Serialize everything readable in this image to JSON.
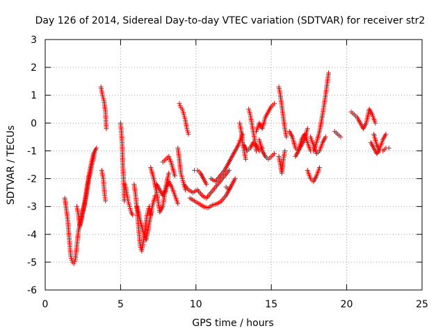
{
  "chart_data": {
    "type": "scatter",
    "title": "Day 126 of 2014, Sidereal Day-to-day VTEC variation (SDTVAR) for receiver str2",
    "xlabel": "GPS time / hours",
    "ylabel": "SDTVAR / TECUs",
    "xlim": [
      0,
      25
    ],
    "ylim": [
      -6,
      3
    ],
    "xticks": [
      0,
      5,
      10,
      15,
      20,
      25
    ],
    "yticks": [
      -6,
      -5,
      -4,
      -3,
      -2,
      -1,
      0,
      1,
      2,
      3
    ],
    "grid": true,
    "marker": "+",
    "color": "#ff0000",
    "series": [
      {
        "name": "SDTVAR",
        "tracks": [
          {
            "x": [
              1.3,
              1.5,
              1.6,
              1.7,
              1.8,
              1.9,
              2.0,
              2.1,
              2.2,
              2.4,
              2.6,
              2.8,
              3.0,
              3.2,
              3.4
            ],
            "y": [
              -2.7,
              -3.5,
              -4.2,
              -4.8,
              -5.0,
              -5.05,
              -4.9,
              -4.4,
              -3.9,
              -3.4,
              -2.9,
              -2.2,
              -1.6,
              -1.1,
              -0.9
            ]
          },
          {
            "x": [
              2.1,
              2.2,
              2.3,
              2.5,
              2.7,
              2.9,
              3.1,
              3.3
            ],
            "y": [
              -3.0,
              -3.3,
              -3.7,
              -3.2,
              -2.7,
              -2.0,
              -1.5,
              -1.0
            ]
          },
          {
            "x": [
              3.7,
              3.8,
              3.9,
              4.0,
              4.05
            ],
            "y": [
              1.3,
              1.0,
              0.8,
              0.4,
              -0.2
            ]
          },
          {
            "x": [
              3.75,
              3.85,
              3.95,
              4.0
            ],
            "y": [
              -1.7,
              -2.0,
              -2.6,
              -2.8
            ]
          },
          {
            "x": [
              5.0,
              5.05,
              5.1,
              5.15,
              5.2,
              5.25
            ],
            "y": [
              0.0,
              -0.3,
              -0.7,
              -1.5,
              -2.0,
              -2.8
            ]
          },
          {
            "x": [
              5.3,
              5.4,
              5.5,
              5.6,
              5.7,
              5.8
            ],
            "y": [
              -2.2,
              -2.5,
              -2.8,
              -3.0,
              -3.2,
              -3.3
            ]
          },
          {
            "x": [
              5.9,
              6.0,
              6.1,
              6.2,
              6.3,
              6.4,
              6.5,
              6.6,
              6.7,
              6.8,
              6.9,
              7.0
            ],
            "y": [
              -2.2,
              -2.6,
              -3.2,
              -3.8,
              -4.4,
              -4.6,
              -4.3,
              -3.9,
              -3.5,
              -3.2,
              -3.0,
              -3.3
            ]
          },
          {
            "x": [
              6.1,
              6.3,
              6.5,
              6.7,
              6.9,
              7.1,
              7.3
            ],
            "y": [
              -3.0,
              -3.5,
              -3.9,
              -4.2,
              -3.6,
              -3.0,
              -2.6
            ]
          },
          {
            "x": [
              7.0,
              7.2,
              7.4,
              7.6,
              7.8,
              8.0,
              8.2
            ],
            "y": [
              -1.6,
              -2.0,
              -2.5,
              -3.2,
              -3.0,
              -2.3,
              -1.8
            ]
          },
          {
            "x": [
              7.4,
              7.6,
              7.8,
              8.0,
              8.2,
              8.4,
              8.6,
              8.8
            ],
            "y": [
              -2.2,
              -2.4,
              -2.6,
              -2.4,
              -2.1,
              -2.3,
              -2.6,
              -2.9
            ]
          },
          {
            "x": [
              7.8,
              8.0,
              8.2,
              8.4,
              8.6
            ],
            "y": [
              -1.4,
              -1.3,
              -1.2,
              -1.5,
              -1.9
            ]
          },
          {
            "x": [
              8.9,
              9.0,
              9.1,
              9.2,
              9.3,
              9.4,
              9.5
            ],
            "y": [
              0.7,
              0.55,
              0.5,
              0.3,
              0.1,
              -0.2,
              -0.4
            ]
          },
          {
            "x": [
              8.8,
              8.9,
              9.0,
              9.1,
              9.2,
              9.3
            ],
            "y": [
              -0.9,
              -1.3,
              -1.8,
              -2.0,
              -2.2,
              -2.4
            ]
          },
          {
            "x": [
              9.2,
              9.5,
              9.8,
              10.1,
              10.4,
              10.7,
              11.0,
              11.3,
              11.6,
              11.9,
              12.2
            ],
            "y": [
              -2.2,
              -2.4,
              -2.5,
              -2.4,
              -2.6,
              -2.7,
              -2.5,
              -2.3,
              -2.1,
              -1.9,
              -1.7
            ]
          },
          {
            "x": [
              9.6,
              9.9,
              10.2,
              10.5,
              10.8,
              11.1,
              11.4,
              11.7,
              12.0,
              12.3
            ],
            "y": [
              -2.7,
              -2.8,
              -2.9,
              -3.0,
              -3.05,
              -2.95,
              -2.9,
              -2.8,
              -2.6,
              -2.3
            ]
          },
          {
            "x": [
              9.9,
              10.1,
              10.3,
              10.5,
              10.7
            ],
            "y": [
              -1.7,
              -1.7,
              -1.8,
              -2.0,
              -2.2
            ]
          },
          {
            "x": [
              11.0,
              11.3,
              11.6,
              11.9,
              12.2,
              12.5,
              12.8,
              13.1
            ],
            "y": [
              -2.0,
              -2.1,
              -1.9,
              -1.7,
              -1.4,
              -1.1,
              -0.8,
              -0.4
            ]
          },
          {
            "x": [
              12.0,
              12.2,
              12.4,
              12.6
            ],
            "y": [
              -2.3,
              -2.4,
              -2.2,
              -2.0
            ]
          },
          {
            "x": [
              12.9,
              13.0,
              13.1,
              13.2,
              13.3
            ],
            "y": [
              0.0,
              -0.3,
              -0.7,
              -1.0,
              -1.3
            ]
          },
          {
            "x": [
              13.2,
              13.4,
              13.6,
              13.8,
              14.0,
              14.2,
              14.4
            ],
            "y": [
              -0.8,
              -1.0,
              -0.9,
              -0.7,
              -0.8,
              -1.0,
              -0.9
            ]
          },
          {
            "x": [
              13.5,
              13.6,
              13.7,
              13.8,
              13.9,
              14.0
            ],
            "y": [
              0.5,
              0.3,
              0.0,
              -0.3,
              -0.6,
              -1.0
            ]
          },
          {
            "x": [
              14.0,
              14.2,
              14.4,
              14.6,
              14.8,
              15.0,
              15.2
            ],
            "y": [
              -0.3,
              0.0,
              -0.2,
              0.2,
              0.4,
              0.6,
              0.7
            ]
          },
          {
            "x": [
              14.2,
              14.4,
              14.6,
              14.8,
              15.0,
              15.2
            ],
            "y": [
              -0.6,
              -1.0,
              -1.2,
              -1.3,
              -1.2,
              -1.1
            ]
          },
          {
            "x": [
              15.5,
              15.6,
              15.7,
              15.8,
              15.9,
              16.0
            ],
            "y": [
              1.3,
              1.0,
              0.6,
              0.2,
              -0.2,
              -0.5
            ]
          },
          {
            "x": [
              15.5,
              15.6,
              15.7,
              15.8,
              15.9
            ],
            "y": [
              -1.2,
              -1.5,
              -1.8,
              -1.3,
              -1.0
            ]
          },
          {
            "x": [
              16.2,
              16.4,
              16.6,
              16.8,
              17.0,
              17.2,
              17.4
            ],
            "y": [
              -0.3,
              -0.5,
              -0.9,
              -1.0,
              -0.8,
              -0.6,
              -0.2
            ]
          },
          {
            "x": [
              16.6,
              16.8,
              17.0,
              17.2,
              17.4,
              17.6
            ],
            "y": [
              -1.2,
              -1.0,
              -0.6,
              -0.4,
              -0.7,
              -1.0
            ]
          },
          {
            "x": [
              17.4,
              17.6,
              17.8,
              18.0,
              18.2
            ],
            "y": [
              -1.7,
              -2.0,
              -2.1,
              -1.9,
              -1.6
            ]
          },
          {
            "x": [
              17.8,
              18.0,
              18.2,
              18.4,
              18.6,
              18.8
            ],
            "y": [
              -1.0,
              -0.7,
              -0.3,
              0.3,
              1.0,
              1.8
            ]
          },
          {
            "x": [
              17.6,
              17.8,
              18.0,
              18.2,
              18.4,
              18.6
            ],
            "y": [
              -0.5,
              -0.8,
              -1.1,
              -1.0,
              -0.7,
              -0.5
            ]
          },
          {
            "x": [
              19.2,
              19.4,
              19.6
            ],
            "y": [
              -0.3,
              -0.4,
              -0.5
            ]
          },
          {
            "x": [
              20.3,
              20.5,
              20.7,
              20.9,
              21.1,
              21.3,
              21.5,
              21.7,
              21.9
            ],
            "y": [
              0.4,
              0.3,
              0.2,
              0.0,
              -0.2,
              0.0,
              0.5,
              0.3,
              0.0
            ]
          },
          {
            "x": [
              21.8,
              22.0,
              22.2,
              22.4,
              22.6,
              22.8
            ],
            "y": [
              -0.4,
              -0.8,
              -1.0,
              -1.0,
              -0.9,
              -0.9
            ]
          },
          {
            "x": [
              21.6,
              21.8,
              22.0,
              22.2,
              22.4,
              22.6
            ],
            "y": [
              -0.7,
              -0.9,
              -1.1,
              -0.9,
              -0.6,
              -0.4
            ]
          }
        ]
      }
    ]
  }
}
